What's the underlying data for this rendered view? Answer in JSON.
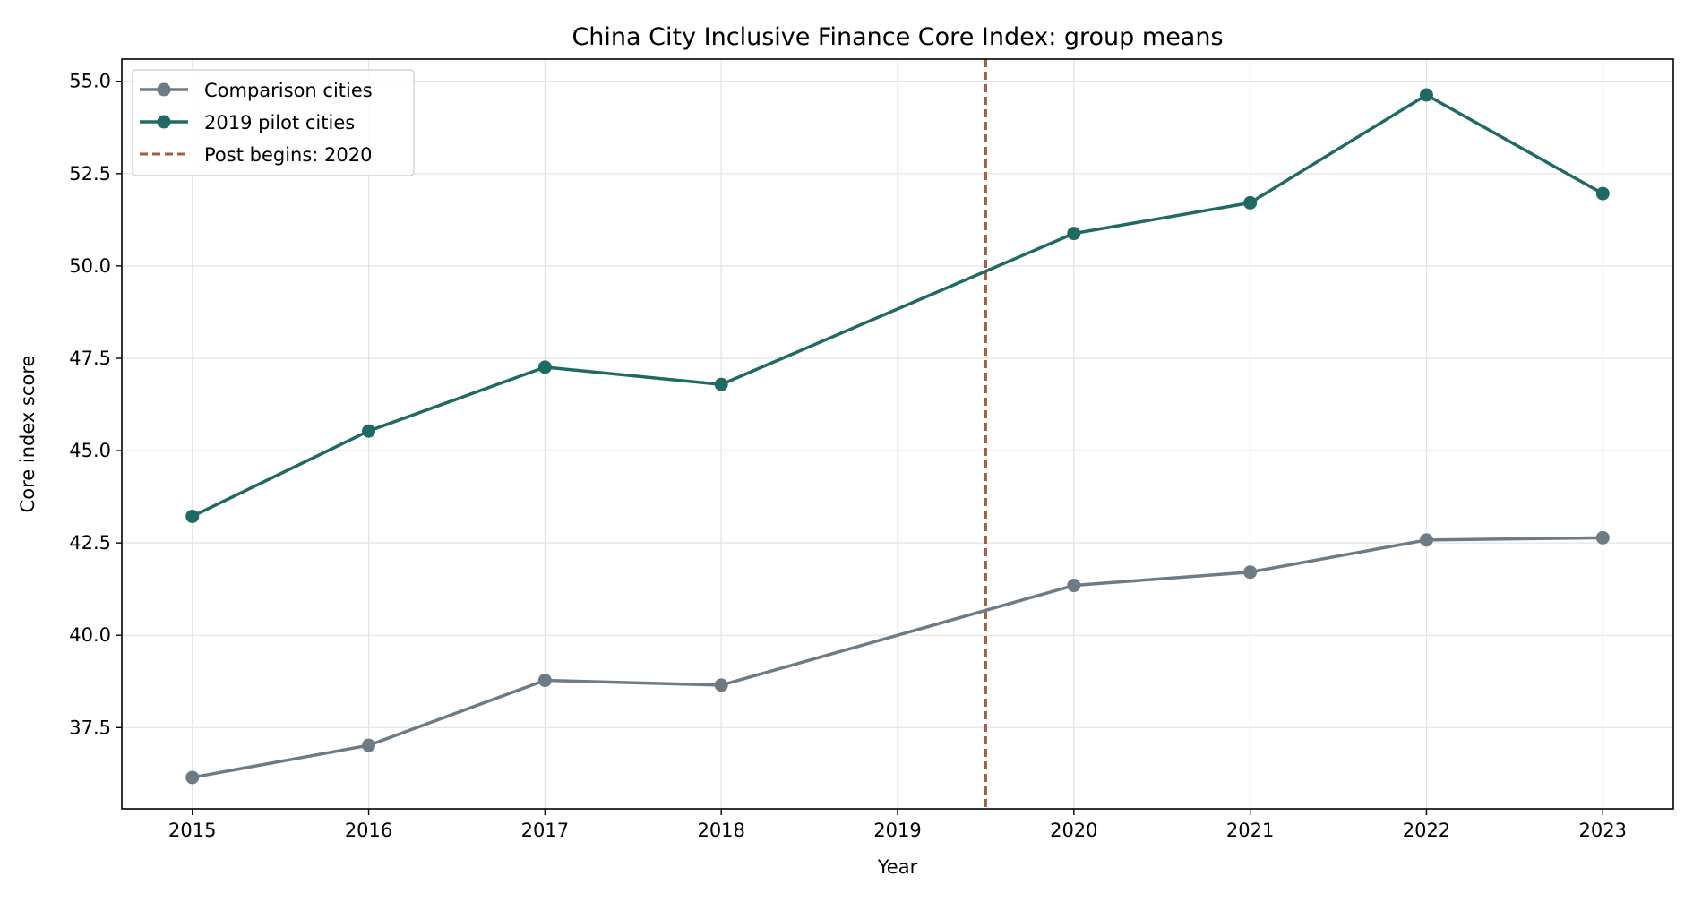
{
  "chart_data": {
    "type": "line",
    "title": "China City Inclusive Finance Core Index: group means",
    "xlabel": "Year",
    "ylabel": "Core index score",
    "x": [
      2015,
      2016,
      2017,
      2018,
      2019,
      2020,
      2021,
      2022,
      2023
    ],
    "x_tick_labels": [
      "2015",
      "2016",
      "2017",
      "2018",
      "2019",
      "2020",
      "2021",
      "2022",
      "2023"
    ],
    "y_ticks": [
      37.5,
      40.0,
      42.5,
      45.0,
      47.5,
      50.0,
      52.5,
      55.0
    ],
    "y_tick_labels": [
      "37.5",
      "40.0",
      "42.5",
      "45.0",
      "47.5",
      "50.0",
      "52.5",
      "55.0"
    ],
    "xlim": [
      2014.6,
      2023.4
    ],
    "ylim": [
      35.3,
      55.6
    ],
    "grid": true,
    "legend_position": "upper-left",
    "series": [
      {
        "name": "Comparison cities",
        "color": "#6e7b85",
        "x": [
          2015,
          2016,
          2017,
          2018,
          2020,
          2021,
          2022,
          2023
        ],
        "values": [
          36.15,
          37.02,
          38.78,
          38.65,
          41.35,
          41.71,
          42.58,
          42.64
        ]
      },
      {
        "name": "2019 pilot cities",
        "color": "#1f6b63",
        "x": [
          2015,
          2016,
          2017,
          2018,
          2020,
          2021,
          2022,
          2023
        ],
        "values": [
          43.22,
          45.53,
          47.26,
          46.79,
          50.88,
          51.71,
          54.63,
          51.96
        ]
      }
    ],
    "reference_line": {
      "name": "Post begins: 2020",
      "x": 2019.5,
      "color": "#a0603a",
      "style": "dashed"
    }
  }
}
